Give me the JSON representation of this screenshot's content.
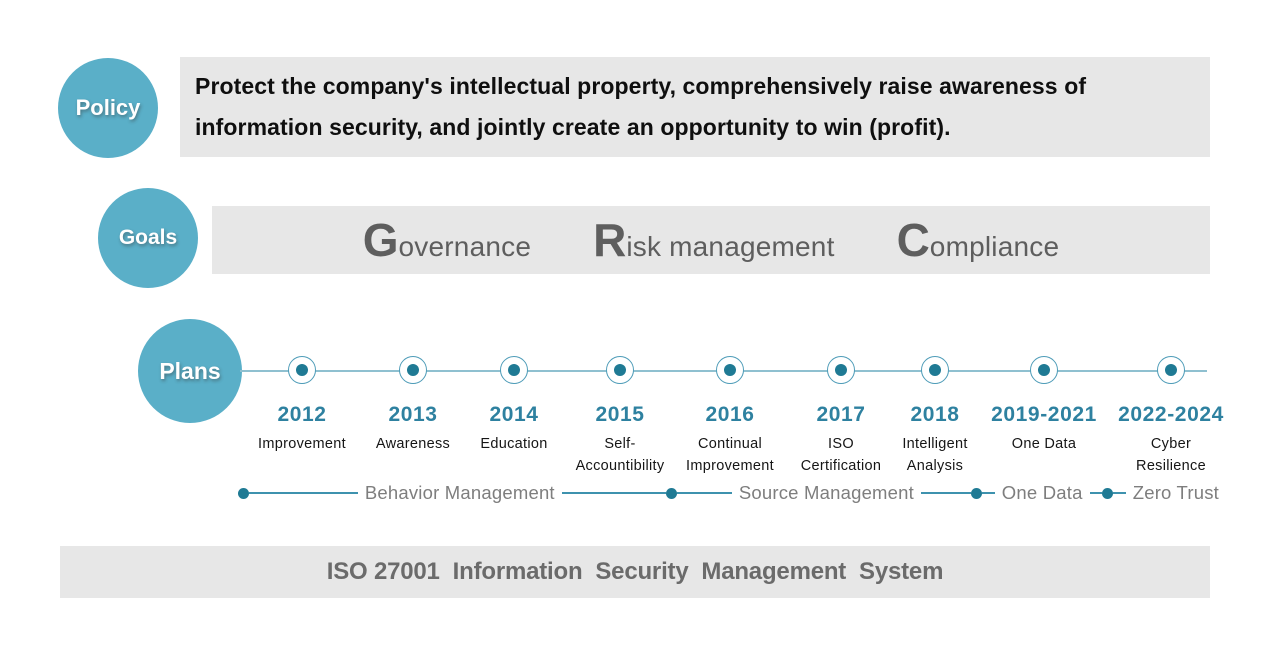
{
  "colors": {
    "badge_teal": "#5aafc8",
    "node_dot_teal": "#1f7a94",
    "node_ring_teal": "#4e9cb8",
    "timeline_line": "#8fc0d0",
    "year_teal": "#2e81a0",
    "panel_gray": "#e7e7e7",
    "goals_text_gray": "#5e5e5e",
    "phase_text_gray": "#7e7e7e",
    "footer_text_gray": "#6b6b6b"
  },
  "policy": {
    "badge_label": "Policy",
    "statement_lines": [
      "Protect the company's intellectual property, comprehensively raise awareness of",
      "information security, and jointly create an opportunity to win (profit)."
    ]
  },
  "goals": {
    "badge_label": "Goals",
    "items": [
      {
        "initial": "G",
        "rest": "overnance"
      },
      {
        "initial": "R",
        "rest": "isk management"
      },
      {
        "initial": "C",
        "rest": "ompliance"
      }
    ]
  },
  "plans": {
    "badge_label": "Plans",
    "milestones": [
      {
        "year": "2012",
        "label_lines": [
          "Improvement"
        ]
      },
      {
        "year": "2013",
        "label_lines": [
          "Awareness"
        ]
      },
      {
        "year": "2014",
        "label_lines": [
          "Education"
        ]
      },
      {
        "year": "2015",
        "label_lines": [
          "Self-",
          "Accountibility"
        ]
      },
      {
        "year": "2016",
        "label_lines": [
          "Continual",
          "Improvement"
        ]
      },
      {
        "year": "2017",
        "label_lines": [
          "ISO",
          "Certification"
        ]
      },
      {
        "year": "2018",
        "label_lines": [
          "Intelligent",
          "Analysis"
        ]
      },
      {
        "year": "2019-2021",
        "label_lines": [
          "One Data"
        ]
      },
      {
        "year": "2022-2024",
        "label_lines": [
          "Cyber",
          "Resilience"
        ]
      }
    ],
    "phases": [
      "Behavior Management",
      "Source Management",
      "One Data",
      "Zero Trust"
    ]
  },
  "footer": {
    "title": "ISO 27001  Information  Security  Management  System"
  }
}
